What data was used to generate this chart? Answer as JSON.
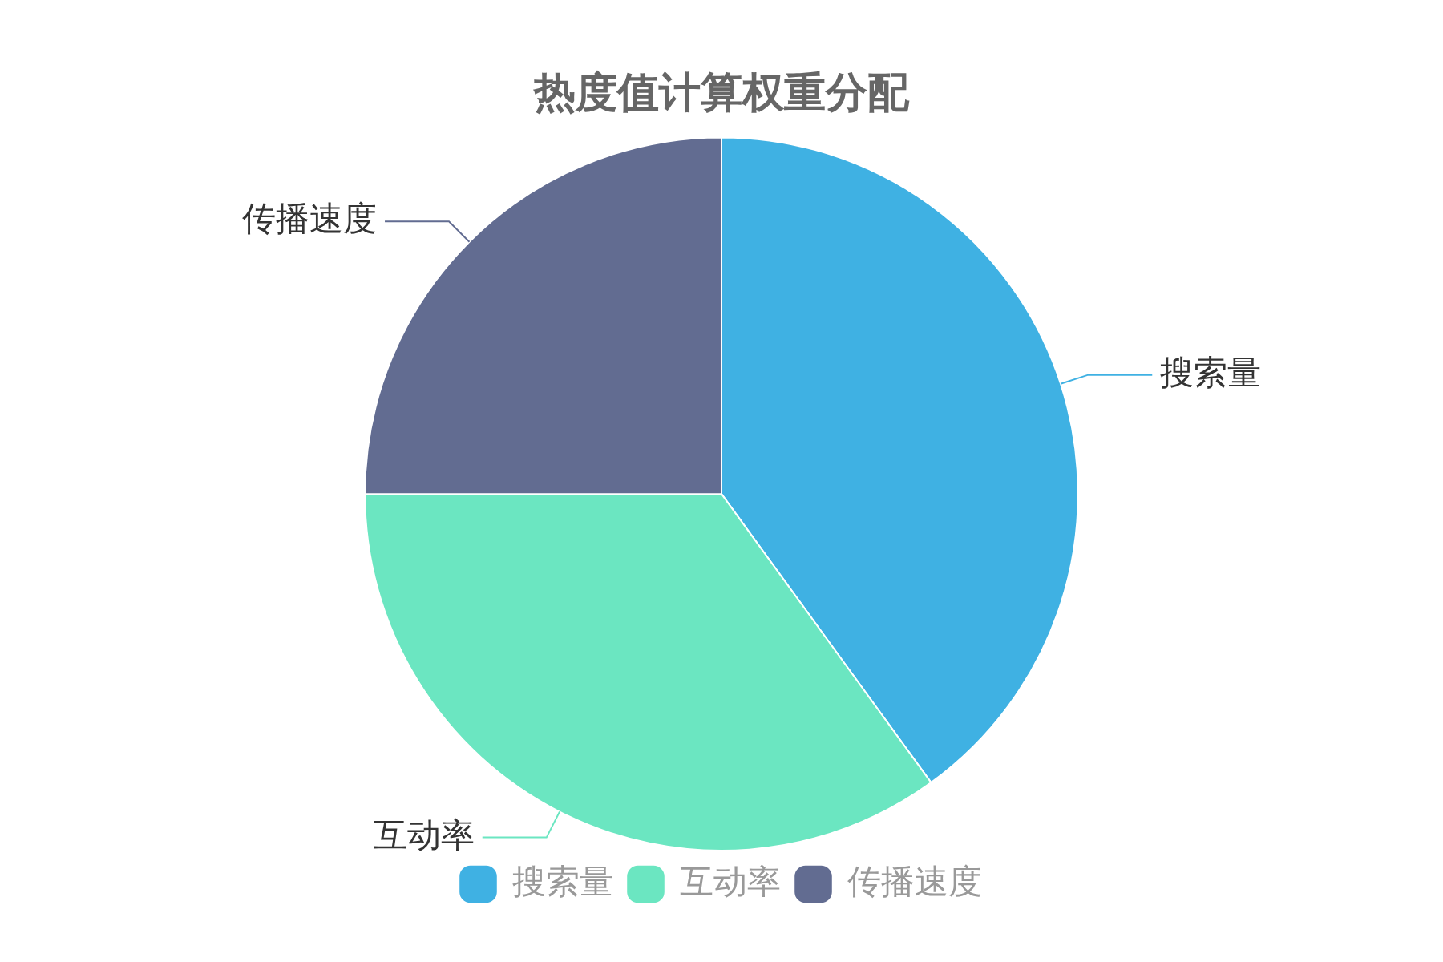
{
  "chart_data": {
    "type": "pie",
    "title": "热度值计算权重分配",
    "categories": [
      "搜索量",
      "互动率",
      "传播速度"
    ],
    "values": [
      40,
      35,
      25
    ],
    "colors": [
      "#3fb1e3",
      "#6be6c1",
      "#626c91"
    ],
    "legend": "bottom"
  }
}
